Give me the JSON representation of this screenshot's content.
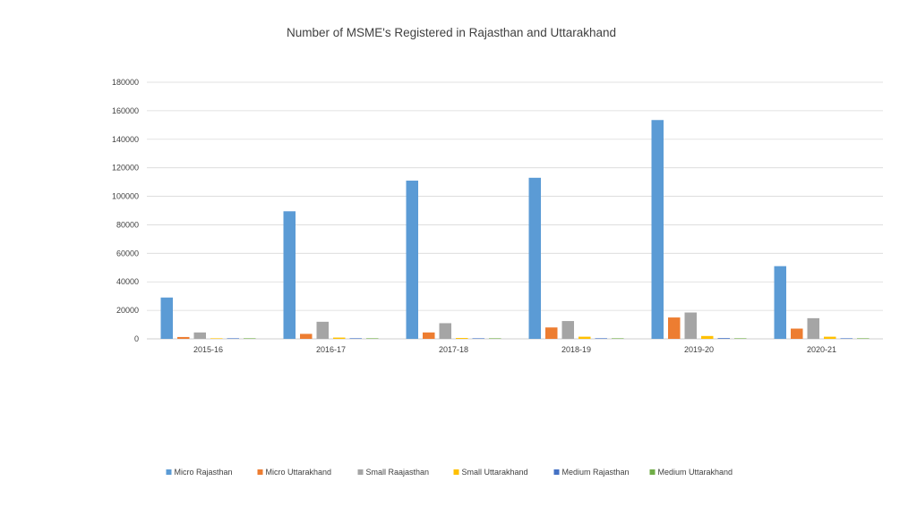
{
  "chart_data": {
    "type": "bar",
    "title": "Number of MSME's Registered in Rajasthan and Uttarakhand",
    "xlabel": "",
    "ylabel": "",
    "categories": [
      "2015-16",
      "2016-17",
      "2017-18",
      "2018-19",
      "2019-20",
      "2020-21"
    ],
    "ylim": [
      0,
      180000
    ],
    "yticks": [
      0,
      20000,
      40000,
      60000,
      80000,
      100000,
      120000,
      140000,
      160000,
      180000
    ],
    "ytick_labels": [
      "0",
      "20000",
      "40000",
      "60000",
      "80000",
      "100000",
      "120000",
      "140000",
      "160000",
      "180000"
    ],
    "grid": true,
    "legend_position": "bottom",
    "series": [
      {
        "name": "Micro Rajasthan",
        "color": "#5b9bd5",
        "values": [
          29000,
          89500,
          111000,
          113000,
          153500,
          51000
        ]
      },
      {
        "name": "Micro Uttarakhand",
        "color": "#ed7d31",
        "values": [
          1300,
          3500,
          4500,
          8000,
          15000,
          7200
        ]
      },
      {
        "name": "Small Raajasthan",
        "color": "#a5a5a5",
        "values": [
          4500,
          12000,
          11000,
          12500,
          18500,
          14500
        ]
      },
      {
        "name": "Small Uttarakhand",
        "color": "#ffc000",
        "values": [
          200,
          900,
          600,
          1500,
          2000,
          1500
        ]
      },
      {
        "name": "Medium Rajasthan",
        "color": "#4472c4",
        "values": [
          100,
          400,
          300,
          400,
          500,
          300
        ]
      },
      {
        "name": "Medium Uttarakhand",
        "color": "#70ad47",
        "values": [
          20,
          50,
          40,
          60,
          80,
          60
        ]
      }
    ]
  }
}
